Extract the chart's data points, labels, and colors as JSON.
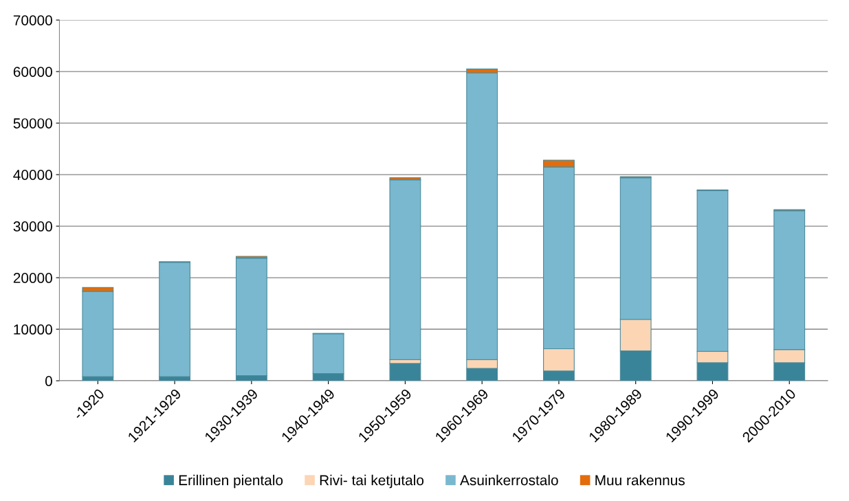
{
  "chart_data": {
    "type": "bar",
    "stacked": true,
    "categories": [
      "-1920",
      "1921-1929",
      "1930-1939",
      "1940-1949",
      "1950-1959",
      "1960-1969",
      "1970-1979",
      "1980-1989",
      "1990-1999",
      "2000-2010"
    ],
    "series": [
      {
        "name": "Erillinen pientalo",
        "color": "#3a8499",
        "values": [
          800,
          800,
          1000,
          1400,
          3350,
          2400,
          1900,
          5800,
          3500,
          3500
        ]
      },
      {
        "name": "Rivi- tai ketjutalo",
        "color": "#fcd5b4",
        "values": [
          0,
          0,
          0,
          0,
          750,
          1700,
          4300,
          6100,
          2200,
          2550
        ]
      },
      {
        "name": "Asuinkerrostalo",
        "color": "#7ab8cf",
        "values": [
          16560,
          22200,
          22800,
          7700,
          34900,
          55650,
          35300,
          27500,
          31200,
          26950
        ]
      },
      {
        "name": "Muu rakennus",
        "color": "#e46c0a",
        "values": [
          740,
          100,
          350,
          100,
          400,
          750,
          1300,
          200,
          150,
          200
        ]
      }
    ],
    "ylim": [
      0,
      70000
    ],
    "yticks": [
      0,
      10000,
      20000,
      30000,
      40000,
      50000,
      60000,
      70000
    ],
    "grid": "y",
    "legend": "bottom"
  }
}
